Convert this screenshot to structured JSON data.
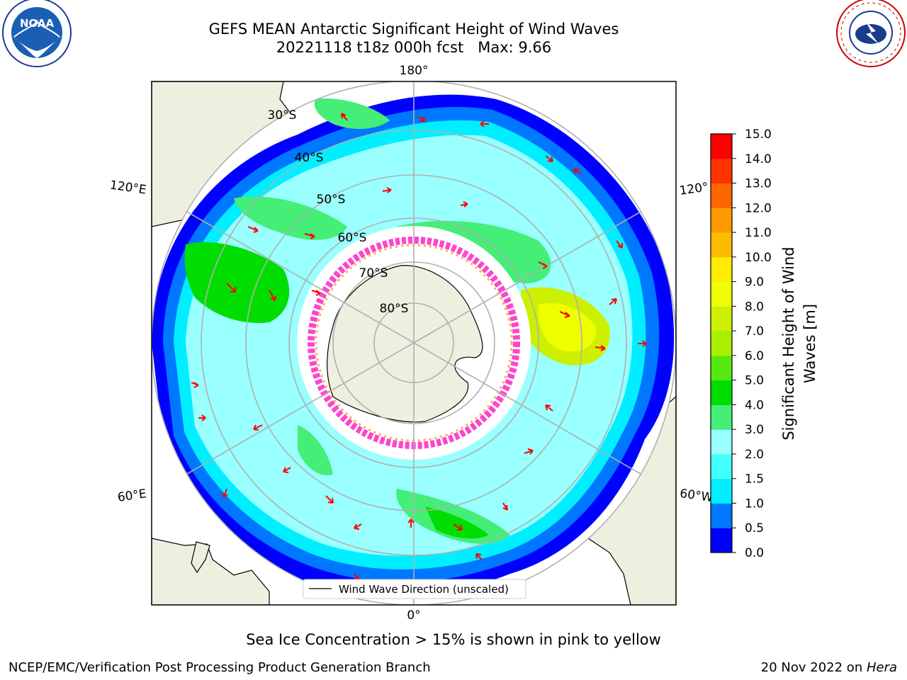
{
  "header": {
    "title_line1": "GEFS MEAN Antarctic Significant Height of Wind Waves",
    "title_line2": "20221118 t18z 000h fcst   Max: 9.66"
  },
  "logos": {
    "left": {
      "name": "noaa-logo",
      "text": "NOAA"
    },
    "right": {
      "name": "nws-logo",
      "text": "NATIONAL WEATHER SERVICE"
    }
  },
  "map": {
    "projection": "south-polar-stereographic",
    "meridian_labels": {
      "top": "180°",
      "bottom": "0°",
      "upper_left": "120°E",
      "upper_right": "120°",
      "lower_left": "60°E",
      "lower_right": "60°W"
    },
    "parallel_labels": [
      "30°S",
      "40°S",
      "50°S",
      "60°S",
      "70°S",
      "80°S"
    ],
    "legend": {
      "entry": "Wind Wave Direction (unscaled)"
    },
    "colors": {
      "land": "#efefe0",
      "arrow": "#ff0000",
      "sea_ice": "#ff44cc",
      "grid": "#b0b0b0"
    }
  },
  "colorbar": {
    "label": "Significant Height of Wind Waves [m]",
    "label_line1": "Significant Height of Wind",
    "label_line2": "Waves [m]",
    "ticks": [
      "15.0",
      "14.0",
      "13.0",
      "12.0",
      "11.0",
      "10.0",
      "9.0",
      "8.0",
      "7.0",
      "6.0",
      "5.0",
      "4.0",
      "3.0",
      "2.0",
      "1.5",
      "1.0",
      "0.5",
      "0.0"
    ],
    "bands": [
      {
        "from": 0.0,
        "to": 0.5,
        "color": "#0000ff"
      },
      {
        "from": 0.5,
        "to": 1.0,
        "color": "#0077ff"
      },
      {
        "from": 1.0,
        "to": 1.5,
        "color": "#00eeff"
      },
      {
        "from": 1.5,
        "to": 2.0,
        "color": "#44ffff"
      },
      {
        "from": 2.0,
        "to": 3.0,
        "color": "#99ffff"
      },
      {
        "from": 3.0,
        "to": 4.0,
        "color": "#44ee77"
      },
      {
        "from": 4.0,
        "to": 5.0,
        "color": "#00dd00"
      },
      {
        "from": 5.0,
        "to": 6.0,
        "color": "#55e811"
      },
      {
        "from": 6.0,
        "to": 7.0,
        "color": "#aaee00"
      },
      {
        "from": 7.0,
        "to": 8.0,
        "color": "#ccf000"
      },
      {
        "from": 8.0,
        "to": 9.0,
        "color": "#eeff00"
      },
      {
        "from": 9.0,
        "to": 10.0,
        "color": "#ffee00"
      },
      {
        "from": 10.0,
        "to": 11.0,
        "color": "#ffbb00"
      },
      {
        "from": 11.0,
        "to": 12.0,
        "color": "#ff9900"
      },
      {
        "from": 12.0,
        "to": 13.0,
        "color": "#ff6600"
      },
      {
        "from": 13.0,
        "to": 14.0,
        "color": "#ff3300"
      },
      {
        "from": 14.0,
        "to": 15.0,
        "color": "#ff0000"
      }
    ]
  },
  "notes": {
    "sea_ice": "Sea Ice Concentration > 15% is shown in pink to yellow"
  },
  "footer": {
    "left": "NCEP/EMC/Verification Post Processing Product Generation Branch",
    "right_prefix": "20 Nov 2022 on ",
    "right_host": "Hera"
  }
}
